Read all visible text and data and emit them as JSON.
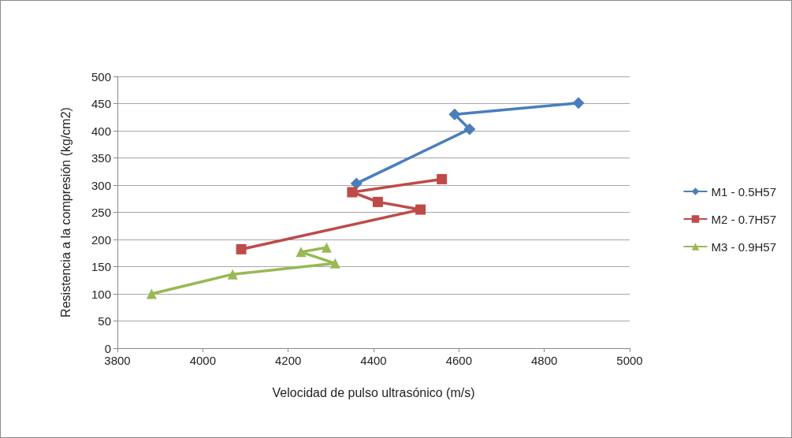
{
  "chart_data": {
    "type": "line",
    "xlabel": "Velocidad de pulso ultrasónico (m/s)",
    "ylabel": "Resistencia a la compresión (kg/cm2)",
    "xlim": [
      3800,
      5000
    ],
    "xticks": [
      3800,
      4000,
      4200,
      4400,
      4600,
      4800,
      5000
    ],
    "ylim": [
      0,
      500
    ],
    "yticks": [
      0,
      50,
      100,
      150,
      200,
      250,
      300,
      350,
      400,
      450,
      500
    ],
    "grid": "y",
    "legend": "right",
    "series": [
      {
        "name": "M1 - 0.5H57",
        "color": "#4a7ebb",
        "marker": "diamond",
        "x": [
          4360,
          4625,
          4590,
          4880
        ],
        "values": [
          303,
          403,
          430,
          451
        ]
      },
      {
        "name": "M2 - 0.7H57",
        "color": "#be4b48",
        "marker": "square",
        "x": [
          4090,
          4510,
          4410,
          4350,
          4560
        ],
        "values": [
          182,
          255,
          269,
          287,
          311
        ]
      },
      {
        "name": "M3 - 0.9H57",
        "color": "#98b954",
        "marker": "triangle",
        "x": [
          3880,
          4070,
          4310,
          4230,
          4290
        ],
        "values": [
          100,
          136,
          156,
          177,
          185
        ]
      }
    ]
  }
}
